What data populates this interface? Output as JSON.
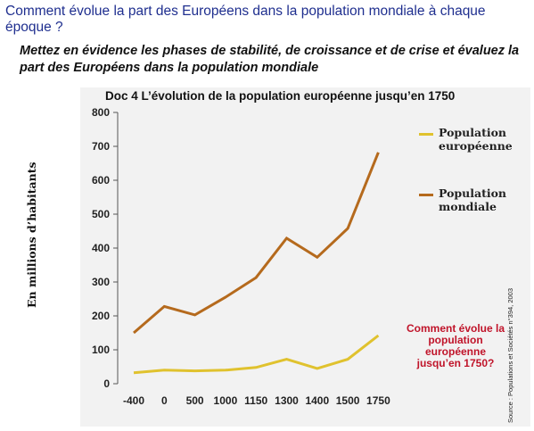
{
  "header": {
    "question": "Comment évolue la part des Européens dans la population mondiale à chaque époque ?",
    "instruction": "Mettez en évidence les phases de stabilité, de croissance et de crise et évaluez la part des Européens dans la population mondiale"
  },
  "annotation": "Comment évolue la population européenne jusqu’en 1750?",
  "source": "Source : Populations et Sociétés n°394, 2003",
  "colors": {
    "european": "#e0c22e",
    "world": "#b56a1d",
    "annotation": "#c0142a"
  },
  "chart_data": {
    "type": "line",
    "title": "Doc 4 L’évolution de la population européenne jusqu’en 1750",
    "ylabel": "En millions d’habitants",
    "xlabel": "",
    "categories": [
      "-400",
      "0",
      "500",
      "1000",
      "1150",
      "1300",
      "1400",
      "1500",
      "1750"
    ],
    "ylim": [
      0,
      800
    ],
    "yticks": [
      "0",
      "100",
      "200",
      "300",
      "400",
      "500",
      "600",
      "700",
      "800"
    ],
    "grid": false,
    "legend_position": "right",
    "series": [
      {
        "name": "Population européenne",
        "values": [
          32,
          40,
          38,
          40,
          48,
          72,
          45,
          72,
          142
        ]
      },
      {
        "name": "Population mondiale",
        "values": [
          150,
          228,
          203,
          255,
          313,
          429,
          373,
          458,
          682
        ]
      }
    ]
  }
}
